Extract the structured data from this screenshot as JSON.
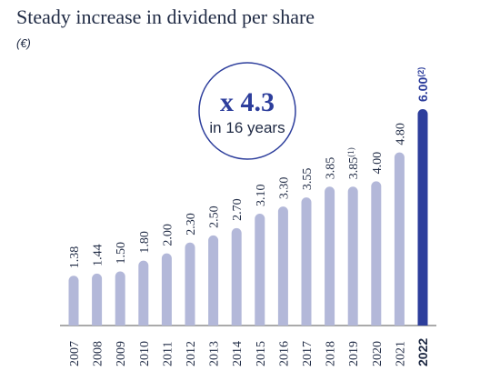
{
  "title": "Steady increase in dividend per share",
  "unit": "(€)",
  "callout": {
    "main": "x 4.3",
    "sub": "in 16 years"
  },
  "colors": {
    "bar": "#b3b8d9",
    "highlight": "#2d3e9c",
    "circle": "#2d3e9c",
    "axis": "#555555"
  },
  "chart_data": {
    "type": "bar",
    "categories": [
      "2007",
      "2008",
      "2009",
      "2010",
      "2011",
      "2012",
      "2013",
      "2014",
      "2015",
      "2016",
      "2017",
      "2018",
      "2019",
      "2020",
      "2021",
      "2022"
    ],
    "values": [
      1.38,
      1.44,
      1.5,
      1.8,
      2.0,
      2.3,
      2.5,
      2.7,
      3.1,
      3.3,
      3.55,
      3.85,
      3.85,
      4.0,
      4.8,
      6.0
    ],
    "labels": [
      "1.38",
      "1.44",
      "1.50",
      "1.80",
      "2.00",
      "2.30",
      "2.50",
      "2.70",
      "3.10",
      "3.30",
      "3.55",
      "3.85",
      "3.85",
      "4.00",
      "4.80",
      "6.00"
    ],
    "label_notes": [
      "",
      "",
      "",
      "",
      "",
      "",
      "",
      "",
      "",
      "",
      "",
      "",
      "(1)",
      "",
      "",
      "(2)"
    ],
    "highlight_index": 15,
    "ylim": [
      0,
      6.0
    ],
    "grid": false
  }
}
